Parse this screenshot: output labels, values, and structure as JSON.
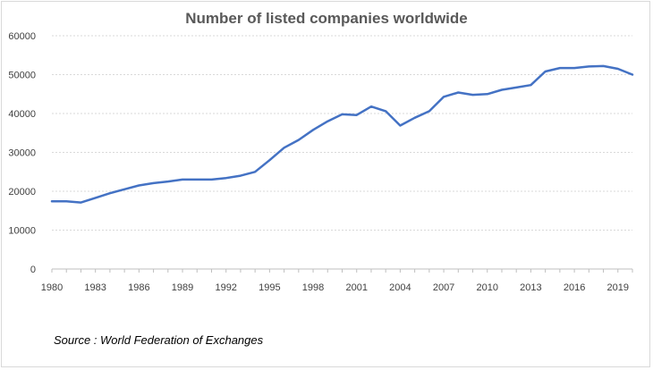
{
  "chart_data": {
    "type": "line",
    "title": "Number of listed companies worldwide",
    "source": "Source : World Federation of Exchanges",
    "xlabel": "",
    "ylabel": "",
    "ylim": [
      0,
      60000
    ],
    "yticks": [
      0,
      10000,
      20000,
      30000,
      40000,
      50000,
      60000
    ],
    "xlim": [
      1980,
      2020
    ],
    "xticks": [
      1980,
      1983,
      1986,
      1989,
      1992,
      1995,
      1998,
      2001,
      2004,
      2007,
      2010,
      2013,
      2016,
      2019
    ],
    "grid": "horizontal",
    "line_color": "#4472c4",
    "x": [
      1980,
      1981,
      1982,
      1983,
      1984,
      1985,
      1986,
      1987,
      1988,
      1989,
      1990,
      1991,
      1992,
      1993,
      1994,
      1995,
      1996,
      1997,
      1998,
      1999,
      2000,
      2001,
      2002,
      2003,
      2004,
      2005,
      2006,
      2007,
      2008,
      2009,
      2010,
      2011,
      2012,
      2013,
      2014,
      2015,
      2016,
      2017,
      2018,
      2019,
      2020
    ],
    "values": [
      17400,
      17400,
      17100,
      18300,
      19500,
      20500,
      21500,
      22100,
      22500,
      23000,
      23000,
      23000,
      23400,
      24000,
      25000,
      28000,
      31200,
      33200,
      35800,
      38000,
      39800,
      39600,
      41800,
      40600,
      36900,
      38900,
      40600,
      44300,
      45400,
      44800,
      45000,
      46100,
      46700,
      47300,
      50800,
      51700,
      51700,
      52100,
      52200,
      51500,
      50000
    ]
  }
}
